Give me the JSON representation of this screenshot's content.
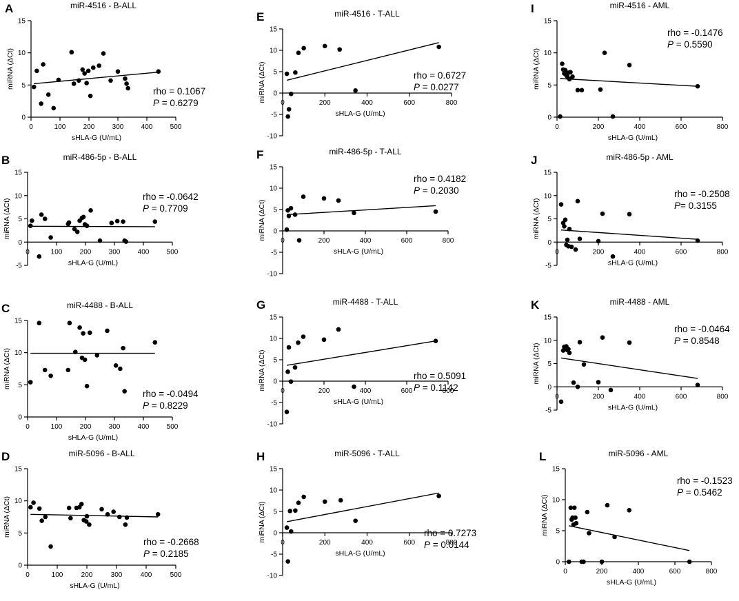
{
  "chart_data": [
    {
      "letter": "A",
      "title": "miR-4516 - B-ALL",
      "type": "scatter",
      "xlabel": "sHLA-G (U/mL)",
      "ylabel": "miRNA (ΔCt)",
      "xlim": [
        0,
        500
      ],
      "ylim": [
        0,
        15
      ],
      "xticks": [
        0,
        100,
        200,
        300,
        400,
        500
      ],
      "yticks": [
        0,
        5,
        10,
        15
      ],
      "x": [
        10,
        20,
        35,
        42,
        60,
        78,
        95,
        140,
        148,
        165,
        178,
        185,
        192,
        198,
        205,
        215,
        235,
        250,
        275,
        300,
        325,
        330,
        335,
        440
      ],
      "y": [
        4.7,
        7.2,
        2.1,
        8.2,
        3.5,
        1.4,
        5.8,
        10.1,
        5.2,
        5.7,
        7.4,
        6.8,
        5.3,
        7.2,
        3.3,
        7.7,
        8.0,
        9.9,
        5.7,
        7.1,
        6.0,
        5.2,
        4.5,
        7.1
      ],
      "fit": [
        [
          10,
          5.2
        ],
        [
          440,
          7.0
        ]
      ],
      "rho_label": "rho = 0.1067",
      "p_label": "P",
      "p_value": " = 0.6279"
    },
    {
      "letter": "B",
      "title": "miR-486-5p - B-ALL",
      "type": "scatter",
      "xlabel": "sHLA-G (U/mL)",
      "ylabel": "miRNA (ΔCt)",
      "xlim": [
        0,
        500
      ],
      "ylim": [
        -5,
        15
      ],
      "xticks": [
        0,
        100,
        200,
        300,
        400,
        500
      ],
      "yticks": [
        -5,
        0,
        5,
        10,
        15
      ],
      "x": [
        10,
        15,
        40,
        48,
        60,
        80,
        140,
        143,
        162,
        172,
        180,
        188,
        193,
        198,
        205,
        218,
        250,
        290,
        310,
        330,
        335,
        340,
        440
      ],
      "y": [
        3.5,
        4.6,
        -3.1,
        5.9,
        5.0,
        1.0,
        3.9,
        4.2,
        2.8,
        2.2,
        4.6,
        5.2,
        5.4,
        3.8,
        3.5,
        6.8,
        0.3,
        4.1,
        4.5,
        4.4,
        0.3,
        0.1,
        4.4
      ],
      "fit": [
        [
          10,
          3.4
        ],
        [
          440,
          3.3
        ]
      ],
      "rho_label": "rho = -0.0642",
      "p_label": "P",
      "p_value": " = 0.7709"
    },
    {
      "letter": "C",
      "title": "miR-4488 - B-ALL",
      "type": "scatter",
      "xlabel": "sHLA-G (U/mL)",
      "ylabel": "miRNA (ΔCt)",
      "xlim": [
        0,
        500
      ],
      "ylim": [
        0,
        15
      ],
      "xticks": [
        0,
        100,
        200,
        300,
        400,
        500
      ],
      "yticks": [
        0,
        5,
        10,
        15
      ],
      "x": [
        10,
        40,
        60,
        80,
        140,
        145,
        165,
        180,
        188,
        192,
        198,
        205,
        215,
        240,
        275,
        305,
        320,
        330,
        335,
        440
      ],
      "y": [
        5.4,
        14.6,
        7.3,
        6.4,
        7.3,
        14.6,
        10.1,
        13.9,
        9.2,
        13.0,
        8.9,
        4.8,
        13.1,
        9.6,
        13.4,
        8.0,
        7.5,
        10.7,
        4.0,
        11.6
      ],
      "fit": [
        [
          10,
          9.9
        ],
        [
          440,
          9.9
        ]
      ],
      "rho_label": "rho = -0.0494",
      "p_label": "P",
      "p_value": " = 0.8229"
    },
    {
      "letter": "D",
      "title": "miR-5096 - B-ALL",
      "type": "scatter",
      "xlabel": "sHLA-G (U/mL)",
      "ylabel": "miRNA (ΔCt)",
      "xlim": [
        0,
        500
      ],
      "ylim": [
        0,
        15
      ],
      "xticks": [
        0,
        100,
        200,
        300,
        400,
        500
      ],
      "yticks": [
        0,
        5,
        10,
        15
      ],
      "x": [
        10,
        20,
        40,
        48,
        60,
        78,
        140,
        145,
        165,
        175,
        182,
        190,
        198,
        200,
        208,
        250,
        270,
        290,
        310,
        330,
        335,
        440
      ],
      "y": [
        9.0,
        9.7,
        8.8,
        6.9,
        7.5,
        2.9,
        8.9,
        7.3,
        8.9,
        9.0,
        9.5,
        7.0,
        6.8,
        7.6,
        6.3,
        8.7,
        7.9,
        8.3,
        7.5,
        6.3,
        7.4,
        7.9
      ],
      "fit": [
        [
          10,
          7.9
        ],
        [
          440,
          7.5
        ]
      ],
      "rho_label": "rho = -0.2668",
      "p_label": "P",
      "p_value": " = 0.2185"
    },
    {
      "letter": "E",
      "title": "miR-4516 - T-ALL",
      "type": "scatter",
      "xlabel": "sHLA-G (U/mL)",
      "ylabel": "miRNA (ΔCt)",
      "xlim": [
        0,
        800
      ],
      "ylim": [
        -10,
        15
      ],
      "xticks": [
        0,
        200,
        400,
        600,
        800
      ],
      "yticks": [
        -10,
        -5,
        0,
        5,
        10,
        15
      ],
      "x": [
        20,
        25,
        30,
        40,
        60,
        75,
        100,
        200,
        270,
        345,
        740
      ],
      "y": [
        4.5,
        -5.5,
        -3.8,
        -0.2,
        4.8,
        9.4,
        10.5,
        11.0,
        10.2,
        0.6,
        10.8
      ],
      "fit": [
        [
          20,
          3.0
        ],
        [
          740,
          11.8
        ]
      ],
      "rho_label": "rho = 0.6727",
      "p_label": "P",
      "p_value": " = 0.0277"
    },
    {
      "letter": "F",
      "title": "miR-486-5p - T-ALL",
      "type": "scatter",
      "xlabel": "sHLA-G (U/mL)",
      "ylabel": "miRNA (ΔCt)",
      "xlim": [
        0,
        800
      ],
      "ylim": [
        -10,
        15
      ],
      "xticks": [
        0,
        200,
        400,
        600,
        800
      ],
      "yticks": [
        -10,
        -5,
        0,
        5,
        10,
        15
      ],
      "x": [
        20,
        25,
        30,
        40,
        60,
        80,
        100,
        200,
        270,
        345,
        740
      ],
      "y": [
        0.3,
        4.8,
        3.5,
        5.3,
        3.8,
        -2.2,
        8.0,
        7.6,
        7.1,
        4.2,
        4.5
      ],
      "fit": [
        [
          20,
          3.8
        ],
        [
          740,
          5.9
        ]
      ],
      "rho_label": "rho = 0.4182",
      "p_label": "P",
      "p_value": " = 0.2030"
    },
    {
      "letter": "G",
      "title": "miR-4488 - T-ALL",
      "type": "scatter",
      "xlabel": "sHLA-G (U/mL)",
      "ylabel": "miRNA (ΔCt)",
      "xlim": [
        0,
        800
      ],
      "ylim": [
        -10,
        15
      ],
      "xticks": [
        0,
        200,
        400,
        600,
        800
      ],
      "yticks": [
        -10,
        -5,
        0,
        5,
        10,
        15
      ],
      "x": [
        20,
        25,
        30,
        40,
        60,
        75,
        100,
        200,
        270,
        345,
        740
      ],
      "y": [
        -7.2,
        2.2,
        7.9,
        -0.1,
        3.2,
        9.0,
        10.4,
        9.7,
        12.1,
        -1.3,
        9.4
      ],
      "fit": [
        [
          20,
          3.7
        ],
        [
          740,
          9.4
        ]
      ],
      "rho_label": "rho = 0.5091",
      "p_label": "P",
      "p_value": " = 0.1142"
    },
    {
      "letter": "H",
      "title": "miR-5096 - T-ALL",
      "type": "scatter",
      "xlabel": "sHLA-G (U/mL)",
      "ylabel": "miRNA (ΔCt)",
      "xlim": [
        0,
        800
      ],
      "ylim": [
        -10,
        15
      ],
      "xticks": [
        0,
        200,
        400,
        600,
        800
      ],
      "yticks": [
        -10,
        -5,
        0,
        5,
        10,
        15
      ],
      "x": [
        20,
        25,
        35,
        40,
        60,
        75,
        100,
        200,
        275,
        345,
        740
      ],
      "y": [
        1.2,
        -6.7,
        5.1,
        0.3,
        5.2,
        7.0,
        8.4,
        7.3,
        7.6,
        2.8,
        8.6
      ],
      "fit": [
        [
          20,
          2.6
        ],
        [
          740,
          9.3
        ]
      ],
      "rho_label": "rho = 0.7273",
      "p_label": "P",
      "p_value": " = 0.0144"
    },
    {
      "letter": "I",
      "title": "miR-4516 - AML",
      "type": "scatter",
      "xlabel": "sHLA-G (U/mL)",
      "ylabel": "miRNA (ΔCt)",
      "xlim": [
        0,
        800
      ],
      "ylim": [
        0,
        15
      ],
      "xticks": [
        0,
        200,
        400,
        600,
        800
      ],
      "yticks": [
        0,
        5,
        10,
        15
      ],
      "x": [
        15,
        25,
        30,
        35,
        40,
        45,
        50,
        55,
        60,
        65,
        75,
        100,
        120,
        210,
        230,
        270,
        350,
        680
      ],
      "y": [
        0.1,
        8.3,
        7.4,
        6.8,
        7.3,
        6.5,
        6.3,
        6.9,
        5.9,
        7.0,
        6.3,
        4.2,
        4.2,
        4.3,
        10.0,
        0.1,
        8.1,
        4.8
      ],
      "fit": [
        [
          15,
          6.0
        ],
        [
          680,
          4.8
        ]
      ],
      "rho_label": "rho = -0.1476",
      "p_label": "P",
      "p_value": " = 0.5590"
    },
    {
      "letter": "J",
      "title": "miR-486-5p - AML",
      "type": "scatter",
      "xlabel": "sHLA-G (U/mL)",
      "ylabel": "miRNA (ΔCt)",
      "xlim": [
        0,
        800
      ],
      "ylim": [
        -5,
        15
      ],
      "xticks": [
        0,
        200,
        400,
        600,
        800
      ],
      "yticks": [
        -5,
        0,
        5,
        10,
        15
      ],
      "x": [
        20,
        30,
        35,
        40,
        45,
        50,
        55,
        60,
        70,
        90,
        100,
        110,
        200,
        220,
        270,
        350,
        680
      ],
      "y": [
        8.1,
        4.1,
        3.4,
        4.8,
        -0.6,
        0.5,
        -0.9,
        2.8,
        -1.0,
        -1.6,
        8.8,
        0.7,
        0.2,
        6.1,
        -3.1,
        6.0,
        0.3
      ],
      "fit": [
        [
          20,
          2.6
        ],
        [
          680,
          0.6
        ]
      ],
      "rho_label": "rho = -0.2508",
      "p_label": "P",
      "p_value": "=  0.3155"
    },
    {
      "letter": "K",
      "title": "miR-4488 - AML",
      "type": "scatter",
      "xlabel": "sHLA-G (U/mL)",
      "ylabel": "miRNA (ΔCt)",
      "xlim": [
        0,
        800
      ],
      "ylim": [
        -5,
        15
      ],
      "xticks": [
        0,
        200,
        400,
        600,
        800
      ],
      "yticks": [
        -5,
        0,
        5,
        10,
        15
      ],
      "x": [
        20,
        30,
        35,
        40,
        45,
        50,
        55,
        60,
        80,
        100,
        110,
        130,
        200,
        220,
        260,
        350,
        680
      ],
      "y": [
        -3.2,
        7.8,
        8.6,
        8.3,
        8.7,
        7.9,
        8.1,
        7.3,
        0.9,
        0.0,
        9.6,
        4.8,
        1.0,
        10.6,
        -0.7,
        9.5,
        0.4
      ],
      "fit": [
        [
          20,
          6.2
        ],
        [
          680,
          1.8
        ]
      ],
      "rho_label": "rho = -0.0464",
      "p_label": "P",
      "p_value": " = 0.8548"
    },
    {
      "letter": "L",
      "title": "miR-5096 - AML",
      "type": "scatter",
      "xlabel": "sHLA-G (U/mL)",
      "ylabel": "miRNA (ΔCt)",
      "xlim": [
        0,
        800
      ],
      "ylim": [
        0,
        15
      ],
      "xticks": [
        0,
        200,
        400,
        600,
        800
      ],
      "yticks": [
        0,
        5,
        10,
        15
      ],
      "x": [
        20,
        30,
        35,
        40,
        45,
        50,
        55,
        60,
        90,
        100,
        120,
        130,
        200,
        230,
        270,
        350,
        680
      ],
      "y": [
        0.0,
        8.7,
        6.8,
        7.1,
        6.0,
        8.7,
        7.1,
        6.2,
        0.0,
        0.0,
        8.0,
        4.6,
        0.0,
        9.1,
        4.0,
        8.3,
        0.0
      ],
      "fit": [
        [
          20,
          5.8
        ],
        [
          680,
          1.8
        ]
      ],
      "rho_label": "rho = -0.1523",
      "p_label": "P",
      "p_value": " = 0.5462"
    }
  ]
}
